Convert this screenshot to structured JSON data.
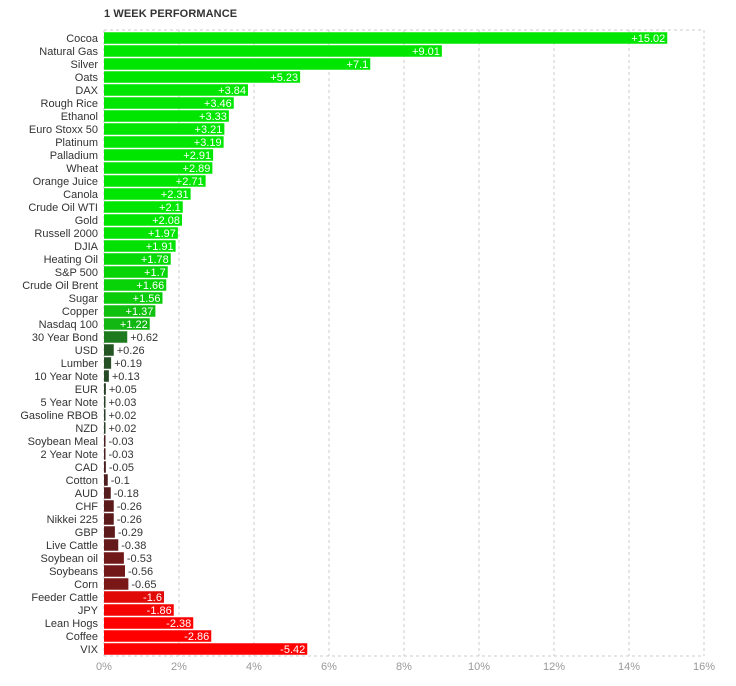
{
  "chart_data": {
    "type": "bar",
    "orientation": "horizontal",
    "title": "1 WEEK PERFORMANCE",
    "categories": [
      "Cocoa",
      "Natural Gas",
      "Silver",
      "Oats",
      "DAX",
      "Rough Rice",
      "Ethanol",
      "Euro Stoxx 50",
      "Platinum",
      "Palladium",
      "Wheat",
      "Orange Juice",
      "Canola",
      "Crude Oil WTI",
      "Gold",
      "Russell 2000",
      "DJIA",
      "Heating Oil",
      "S&P 500",
      "Crude Oil Brent",
      "Sugar",
      "Copper",
      "Nasdaq 100",
      "30 Year Bond",
      "USD",
      "Lumber",
      "10 Year Note",
      "EUR",
      "5 Year Note",
      "Gasoline RBOB",
      "NZD",
      "Soybean Meal",
      "2 Year Note",
      "CAD",
      "Cotton",
      "AUD",
      "CHF",
      "Nikkei 225",
      "GBP",
      "Live Cattle",
      "Soybean oil",
      "Soybeans",
      "Corn",
      "Feeder Cattle",
      "JPY",
      "Lean Hogs",
      "Coffee",
      "VIX"
    ],
    "values": [
      15.02,
      9.01,
      7.1,
      5.23,
      3.84,
      3.46,
      3.33,
      3.21,
      3.19,
      2.91,
      2.89,
      2.71,
      2.31,
      2.1,
      2.08,
      1.97,
      1.91,
      1.78,
      1.7,
      1.66,
      1.56,
      1.37,
      1.22,
      0.62,
      0.26,
      0.19,
      0.13,
      0.05,
      0.03,
      0.02,
      0.02,
      -0.03,
      -0.03,
      -0.05,
      -0.1,
      -0.18,
      -0.26,
      -0.26,
      -0.29,
      -0.38,
      -0.53,
      -0.56,
      -0.65,
      -1.6,
      -1.86,
      -2.38,
      -2.86,
      -5.42
    ],
    "value_labels": [
      "+15.02",
      "+9.01",
      "+7.1",
      "+5.23",
      "+3.84",
      "+3.46",
      "+3.33",
      "+3.21",
      "+3.19",
      "+2.91",
      "+2.89",
      "+2.71",
      "+2.31",
      "+2.1",
      "+2.08",
      "+1.97",
      "+1.91",
      "+1.78",
      "+1.7",
      "+1.66",
      "+1.56",
      "+1.37",
      "+1.22",
      "+0.62",
      "+0.26",
      "+0.19",
      "+0.13",
      "+0.05",
      "+0.03",
      "+0.02",
      "+0.02",
      "-0.03",
      "-0.03",
      "-0.05",
      "-0.1",
      "-0.18",
      "-0.26",
      "-0.26",
      "-0.29",
      "-0.38",
      "-0.53",
      "-0.56",
      "-0.65",
      "-1.6",
      "-1.86",
      "-2.38",
      "-2.86",
      "-5.42"
    ],
    "xlim": [
      0,
      16
    ],
    "x_ticks": [
      "0%",
      "2%",
      "4%",
      "6%",
      "8%",
      "10%",
      "12%",
      "14%",
      "16%"
    ],
    "bars_by_magnitude": true,
    "grid": true,
    "colors": {
      "strong_positive": "#00e600",
      "mid_positive": "#18b418",
      "weak_positive": "#1f4d1f",
      "weak_negative": "#4d1f1f",
      "mid_negative": "#b41818",
      "strong_negative": "#ff0000",
      "grid": "#cccccc"
    }
  }
}
